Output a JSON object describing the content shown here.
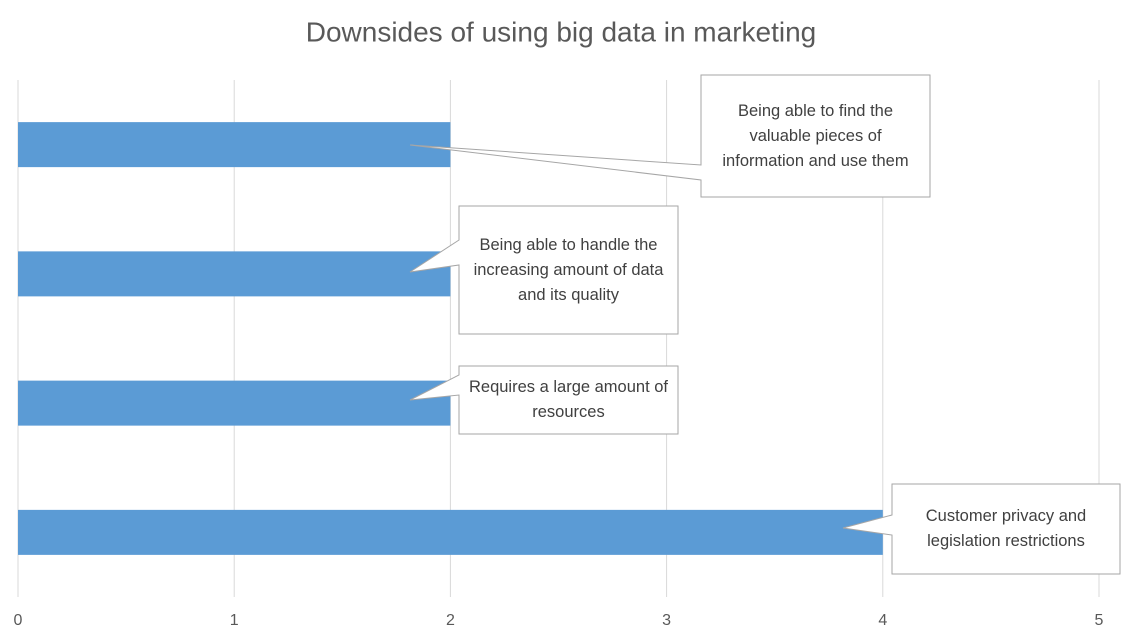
{
  "chart_data": {
    "type": "bar",
    "orientation": "horizontal",
    "title": "Downsides of using big data in marketing",
    "categories": [
      "Being able to find the valuable pieces of information and use them",
      "Being able to handle the increasing amount of data and its quality",
      "Requires a large amount of resources",
      "Customer privacy and legislation restrictions"
    ],
    "values": [
      2,
      2,
      2,
      4
    ],
    "color": "#5b9bd5",
    "xlim": [
      0,
      5
    ],
    "xticks": [
      0,
      1,
      2,
      3,
      4,
      5
    ],
    "grid": true
  }
}
